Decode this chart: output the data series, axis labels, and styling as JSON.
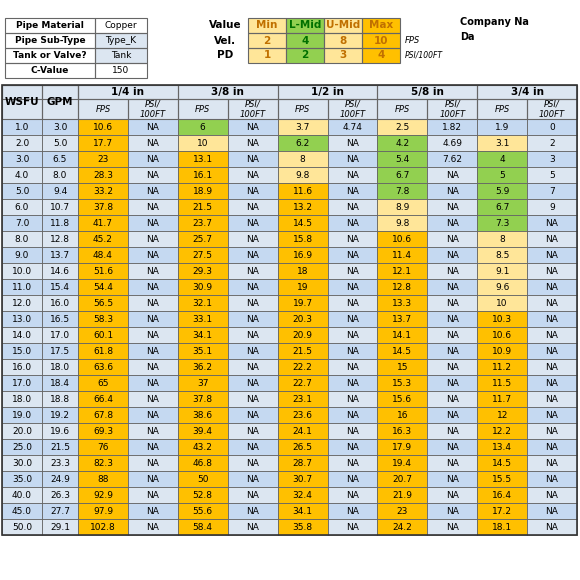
{
  "info_labels": [
    "Pipe Material",
    "Pipe Sub-Type",
    "Tank or Valve?",
    "C-Value"
  ],
  "info_values": [
    "Copper",
    "Type_K",
    "Tank",
    "150"
  ],
  "legend_cols": [
    "Min",
    "L-Mid",
    "U-Mid",
    "Max"
  ],
  "legend_vel": [
    "2",
    "4",
    "8",
    "10"
  ],
  "legend_pd": [
    "1",
    "2",
    "3",
    "4"
  ],
  "legend_colors": [
    "#ffe699",
    "#92d050",
    "#ffe699",
    "#ffc000"
  ],
  "legend_header_colors": [
    "#ffc000",
    "#92d050",
    "#ffe699",
    "#ffc000"
  ],
  "company_label": "Company Na",
  "date_label": "Da",
  "pipe_sizes": [
    "1/4 in",
    "3/8 in",
    "1/2 in",
    "5/8 in",
    "3/4 in"
  ],
  "rows": [
    [
      1.0,
      3.0,
      10.6,
      "NA",
      6.0,
      "NA",
      3.7,
      4.74,
      2.5,
      1.82,
      1.9,
      "0"
    ],
    [
      2.0,
      5.0,
      17.7,
      "NA",
      10.0,
      "NA",
      6.2,
      "NA",
      4.2,
      4.69,
      3.1,
      "2"
    ],
    [
      3.0,
      6.5,
      23.0,
      "NA",
      13.1,
      "NA",
      8.0,
      "NA",
      5.4,
      7.62,
      4.0,
      "3"
    ],
    [
      4.0,
      8.0,
      28.3,
      "NA",
      16.1,
      "NA",
      9.8,
      "NA",
      6.7,
      "NA",
      5.0,
      "5"
    ],
    [
      5.0,
      9.4,
      33.2,
      "NA",
      18.9,
      "NA",
      11.6,
      "NA",
      7.8,
      "NA",
      5.9,
      "7"
    ],
    [
      6.0,
      10.7,
      37.8,
      "NA",
      21.5,
      "NA",
      13.2,
      "NA",
      8.9,
      "NA",
      6.7,
      "9"
    ],
    [
      7.0,
      11.8,
      41.7,
      "NA",
      23.7,
      "NA",
      14.5,
      "NA",
      9.8,
      "NA",
      7.3,
      "NA"
    ],
    [
      8.0,
      12.8,
      45.2,
      "NA",
      25.7,
      "NA",
      15.8,
      "NA",
      10.6,
      "NA",
      8.0,
      "NA"
    ],
    [
      9.0,
      13.7,
      48.4,
      "NA",
      27.5,
      "NA",
      16.9,
      "NA",
      11.4,
      "NA",
      8.5,
      "NA"
    ],
    [
      10.0,
      14.6,
      51.6,
      "NA",
      29.3,
      "NA",
      18.0,
      "NA",
      12.1,
      "NA",
      9.1,
      "NA"
    ],
    [
      11.0,
      15.4,
      54.4,
      "NA",
      30.9,
      "NA",
      19.0,
      "NA",
      12.8,
      "NA",
      9.6,
      "NA"
    ],
    [
      12.0,
      16.0,
      56.5,
      "NA",
      32.1,
      "NA",
      19.7,
      "NA",
      13.3,
      "NA",
      10.0,
      "NA"
    ],
    [
      13.0,
      16.5,
      58.3,
      "NA",
      33.1,
      "NA",
      20.3,
      "NA",
      13.7,
      "NA",
      10.3,
      "NA"
    ],
    [
      14.0,
      17.0,
      60.1,
      "NA",
      34.1,
      "NA",
      20.9,
      "NA",
      14.1,
      "NA",
      10.6,
      "NA"
    ],
    [
      15.0,
      17.5,
      61.8,
      "NA",
      35.1,
      "NA",
      21.5,
      "NA",
      14.5,
      "NA",
      10.9,
      "NA"
    ],
    [
      16.0,
      18.0,
      63.6,
      "NA",
      36.2,
      "NA",
      22.2,
      "NA",
      15.0,
      "NA",
      11.2,
      "NA"
    ],
    [
      17.0,
      18.4,
      65.0,
      "NA",
      37.0,
      "NA",
      "22.7",
      "NA",
      15.3,
      "NA",
      11.5,
      "NA"
    ],
    [
      18.0,
      18.8,
      66.4,
      "NA",
      37.8,
      "NA",
      23.1,
      "NA",
      15.6,
      "NA",
      11.7,
      "NA"
    ],
    [
      19.0,
      19.2,
      67.8,
      "NA",
      38.6,
      "NA",
      23.6,
      "NA",
      16.0,
      "NA",
      12.0,
      "NA"
    ],
    [
      20.0,
      19.6,
      69.3,
      "NA",
      39.4,
      "NA",
      24.1,
      "NA",
      16.3,
      "NA",
      12.2,
      "NA"
    ],
    [
      25.0,
      21.5,
      76.0,
      "NA",
      43.2,
      "NA",
      26.5,
      "NA",
      17.9,
      "NA",
      13.4,
      "NA"
    ],
    [
      30.0,
      23.3,
      82.3,
      "NA",
      46.8,
      "NA",
      28.7,
      "NA",
      19.4,
      "NA",
      14.5,
      "NA"
    ],
    [
      35.0,
      24.9,
      88.0,
      "NA",
      50.0,
      "NA",
      30.7,
      "NA",
      20.7,
      "NA",
      15.5,
      "NA"
    ],
    [
      40.0,
      26.3,
      92.9,
      "NA",
      52.8,
      "NA",
      32.4,
      "NA",
      21.9,
      "NA",
      16.4,
      "NA"
    ],
    [
      45.0,
      27.7,
      97.9,
      "NA",
      55.6,
      "NA",
      34.1,
      "NA",
      23.0,
      "NA",
      17.2,
      "NA"
    ],
    [
      50.0,
      29.1,
      102.8,
      "NA",
      58.4,
      "NA",
      35.8,
      "NA",
      24.2,
      "NA",
      18.1,
      "NA"
    ]
  ],
  "bg_even": "#c5d9f1",
  "bg_odd": "#dce6f1",
  "header_bg": "#dce6f1",
  "vel_min": 2.0,
  "vel_lmid": 4.0,
  "vel_umid": 8.0,
  "vel_max": 10.0
}
